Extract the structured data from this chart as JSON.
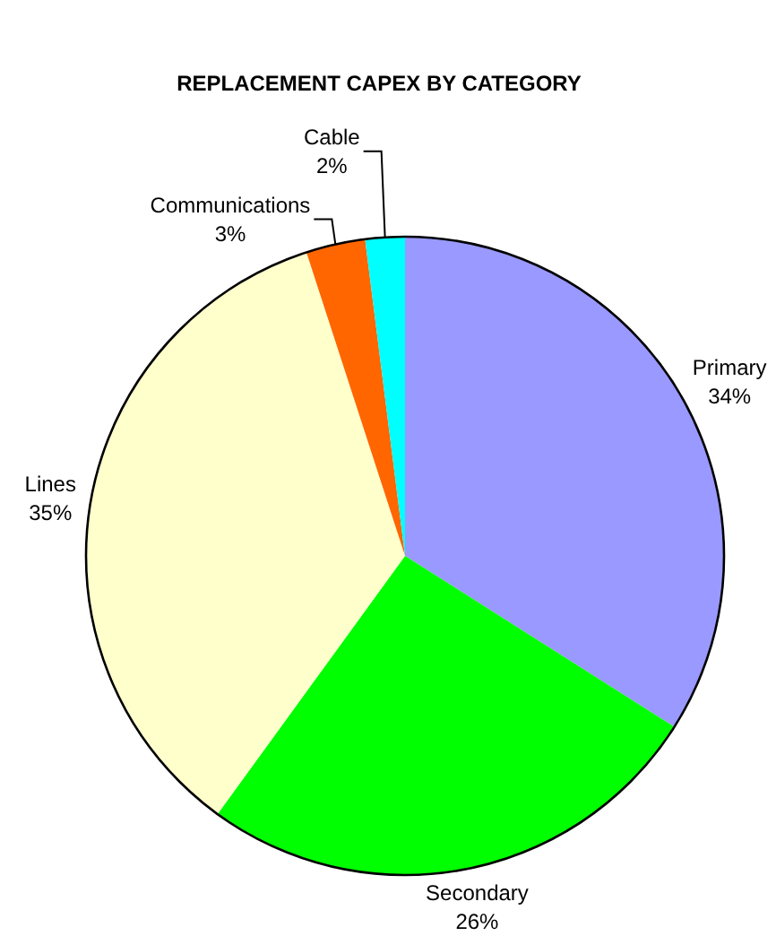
{
  "chart_data": {
    "type": "pie",
    "title": "REPLACEMENT CAPEX BY CATEGORY",
    "categories": [
      "Primary",
      "Secondary",
      "Lines",
      "Communications",
      "Cable"
    ],
    "values": [
      34,
      26,
      35,
      3,
      2
    ],
    "value_labels": [
      "34%",
      "26%",
      "35%",
      "3%",
      "2%"
    ],
    "colors": [
      "#9999ff",
      "#00ff00",
      "#ffffcc",
      "#ff6600",
      "#00ffff"
    ]
  }
}
